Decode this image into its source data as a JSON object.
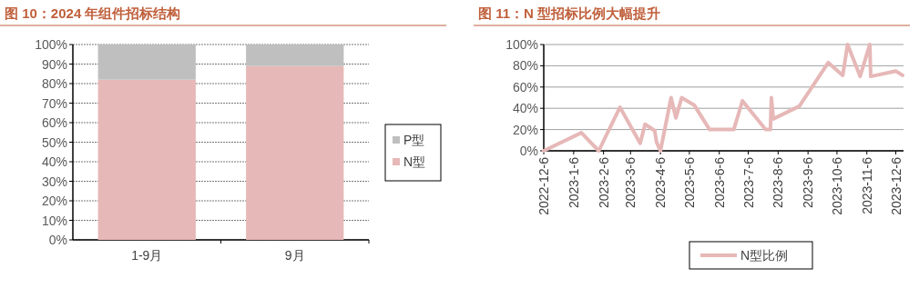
{
  "chart_data": [
    {
      "type": "bar",
      "title": "图 10：2024 年组件招标结构",
      "categories": [
        "1-9月",
        "9月"
      ],
      "stacked": true,
      "series": [
        {
          "name": "N型",
          "color": "#e6b8b7",
          "values": [
            82,
            89
          ]
        },
        {
          "name": "P型",
          "color": "#bfbfbf",
          "values": [
            18,
            11
          ]
        }
      ],
      "ylim": [
        0,
        100
      ],
      "yticks": [
        {
          "value": 0,
          "label": "0%"
        },
        {
          "value": 10,
          "label": "10%"
        },
        {
          "value": 20,
          "label": "20%"
        },
        {
          "value": 30,
          "label": "30%"
        },
        {
          "value": 40,
          "label": "40%"
        },
        {
          "value": 50,
          "label": "50%"
        },
        {
          "value": 60,
          "label": "60%"
        },
        {
          "value": 70,
          "label": "70%"
        },
        {
          "value": 80,
          "label": "80%"
        },
        {
          "value": 90,
          "label": "90%"
        },
        {
          "value": 100,
          "label": "100%"
        }
      ],
      "grid": "y",
      "legend": "right"
    },
    {
      "type": "line",
      "title": "图 11：N 型招标比例大幅提升",
      "x": [
        "2022-12-06",
        "2023-01-14",
        "2023-02-01",
        "2023-02-23",
        "2023-03-16",
        "2023-03-21",
        "2023-03-31",
        "2023-04-02",
        "2023-04-06",
        "2023-04-17",
        "2023-04-22",
        "2023-04-28",
        "2023-05-11",
        "2023-05-27",
        "2023-06-21",
        "2023-06-30",
        "2023-07-24",
        "2023-07-29",
        "2023-07-30",
        "2023-08-01",
        "2023-08-28",
        "2023-09-27",
        "2023-10-12",
        "2023-10-17",
        "2023-10-30",
        "2023-11-09",
        "2023-11-10",
        "2023-12-06",
        "2023-12-13"
      ],
      "series": [
        {
          "name": "N型比例",
          "color": "#e6b8b7",
          "values": [
            0,
            17,
            0,
            41,
            7,
            25,
            19,
            8,
            0,
            50,
            31,
            50,
            43,
            20,
            20,
            47,
            20,
            20,
            50,
            30,
            42,
            83,
            71,
            100,
            70,
            100,
            70,
            75,
            71
          ]
        }
      ],
      "xlim": [
        "2022-12-06",
        "2023-12-14"
      ],
      "xticks": [
        {
          "value": "2022-12-06",
          "label": "2022-12-6"
        },
        {
          "value": "2023-01-06",
          "label": "2023-1-6"
        },
        {
          "value": "2023-02-06",
          "label": "2023-2-6"
        },
        {
          "value": "2023-03-06",
          "label": "2023-3-6"
        },
        {
          "value": "2023-04-06",
          "label": "2023-4-6"
        },
        {
          "value": "2023-05-06",
          "label": "2023-5-6"
        },
        {
          "value": "2023-06-06",
          "label": "2023-6-6"
        },
        {
          "value": "2023-07-06",
          "label": "2023-7-6"
        },
        {
          "value": "2023-08-06",
          "label": "2023-8-6"
        },
        {
          "value": "2023-09-06",
          "label": "2023-9-6"
        },
        {
          "value": "2023-10-06",
          "label": "2023-10-6"
        },
        {
          "value": "2023-11-06",
          "label": "2023-11-6"
        },
        {
          "value": "2023-12-06",
          "label": "2023-12-6"
        }
      ],
      "ylim": [
        0,
        100
      ],
      "yticks": [
        {
          "value": 0,
          "label": "0%"
        },
        {
          "value": 20,
          "label": "20%"
        },
        {
          "value": 40,
          "label": "40%"
        },
        {
          "value": 60,
          "label": "60%"
        },
        {
          "value": 80,
          "label": "80%"
        },
        {
          "value": 100,
          "label": "100%"
        }
      ],
      "grid": "y",
      "legend": "bottom"
    }
  ]
}
